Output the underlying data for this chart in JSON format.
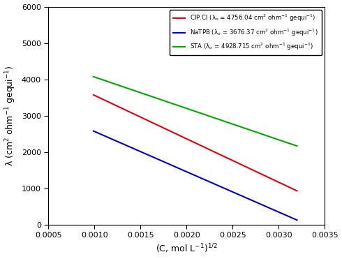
{
  "xlim": [
    0.0005,
    0.0035
  ],
  "ylim": [
    0,
    6000
  ],
  "xticks": [
    0.0005,
    0.001,
    0.0015,
    0.002,
    0.0025,
    0.003,
    0.0035
  ],
  "yticks": [
    0,
    1000,
    2000,
    3000,
    4000,
    5000,
    6000
  ],
  "lines": [
    {
      "name": "CIP.Cl",
      "color": "#e8000d",
      "lambda0": 4756.04,
      "slope": -1195455,
      "x_start": 0.00099,
      "x_end": 0.0032
    },
    {
      "name": "NaTPB",
      "color": "#0000cc",
      "lambda0": 3676.37,
      "slope": -1109091,
      "x_start": 0.00099,
      "x_end": 0.0032
    },
    {
      "name": "STA",
      "color": "#00aa00",
      "lambda0": 4928.715,
      "slope": -863636,
      "x_start": 0.00099,
      "x_end": 0.0032
    }
  ],
  "legend_colors": [
    "#e8000d",
    "#0000cc",
    "#00aa00"
  ],
  "figsize": [
    4.9,
    3.71
  ],
  "dpi": 100
}
